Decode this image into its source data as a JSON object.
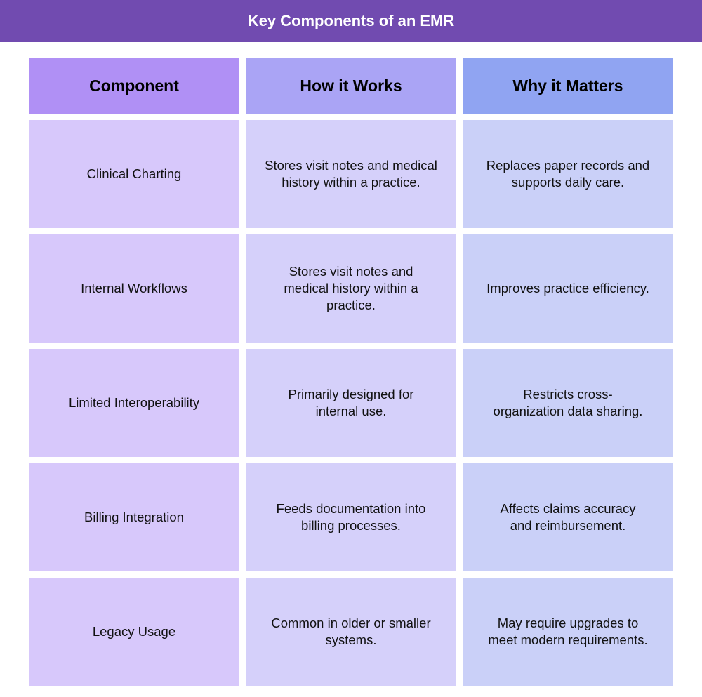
{
  "title": "Key Components of an EMR",
  "headers": [
    "Component",
    "How it Works",
    "Why it Matters"
  ],
  "rows": [
    {
      "component": [
        "Clinical Charting"
      ],
      "how": [
        "Stores visit notes and medical",
        "history within a practice."
      ],
      "why": [
        "Replaces paper records and",
        "supports daily care."
      ]
    },
    {
      "component": [
        "Internal Workflows"
      ],
      "how": [
        "Stores visit notes and",
        "medical history within a",
        "practice."
      ],
      "why": [
        "Improves practice efficiency."
      ]
    },
    {
      "component": [
        "Limited Interoperability"
      ],
      "how": [
        "Primarily designed for",
        "internal use."
      ],
      "why": [
        "Restricts cross-",
        "organization data sharing."
      ]
    },
    {
      "component": [
        "Billing Integration"
      ],
      "how": [
        "Feeds documentation into",
        "billing processes."
      ],
      "why": [
        "Affects claims accuracy",
        "and reimbursement."
      ]
    },
    {
      "component": [
        "Legacy Usage"
      ],
      "how": [
        "Common in older or smaller",
        "systems."
      ],
      "why": [
        "May require upgrades to",
        "meet modern requirements."
      ]
    }
  ],
  "colors": {
    "banner": "#714bb0",
    "header": [
      "#b090f5",
      "#aaa4f5",
      "#90a4f2"
    ],
    "body": [
      "#d7c8fb",
      "#d5d0fa",
      "#cad0f8"
    ]
  }
}
